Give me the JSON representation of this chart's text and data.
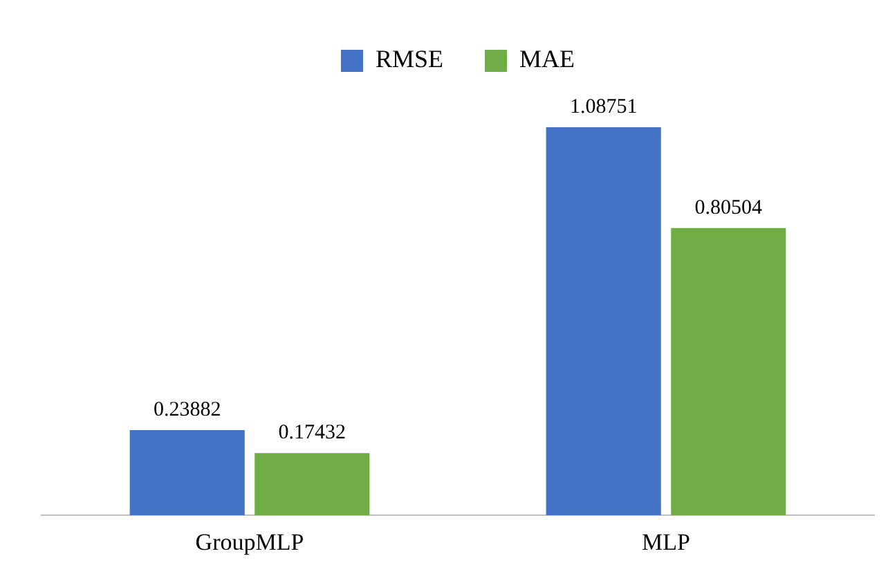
{
  "chart_data": {
    "type": "bar",
    "categories": [
      "GroupMLP",
      "MLP"
    ],
    "series": [
      {
        "name": "RMSE",
        "color": "#4472c4",
        "values": [
          0.23882,
          1.08751
        ]
      },
      {
        "name": "MAE",
        "color": "#70ad47",
        "values": [
          0.17432,
          0.80504
        ]
      }
    ],
    "data_labels": true,
    "legend": "top",
    "grid": false
  }
}
